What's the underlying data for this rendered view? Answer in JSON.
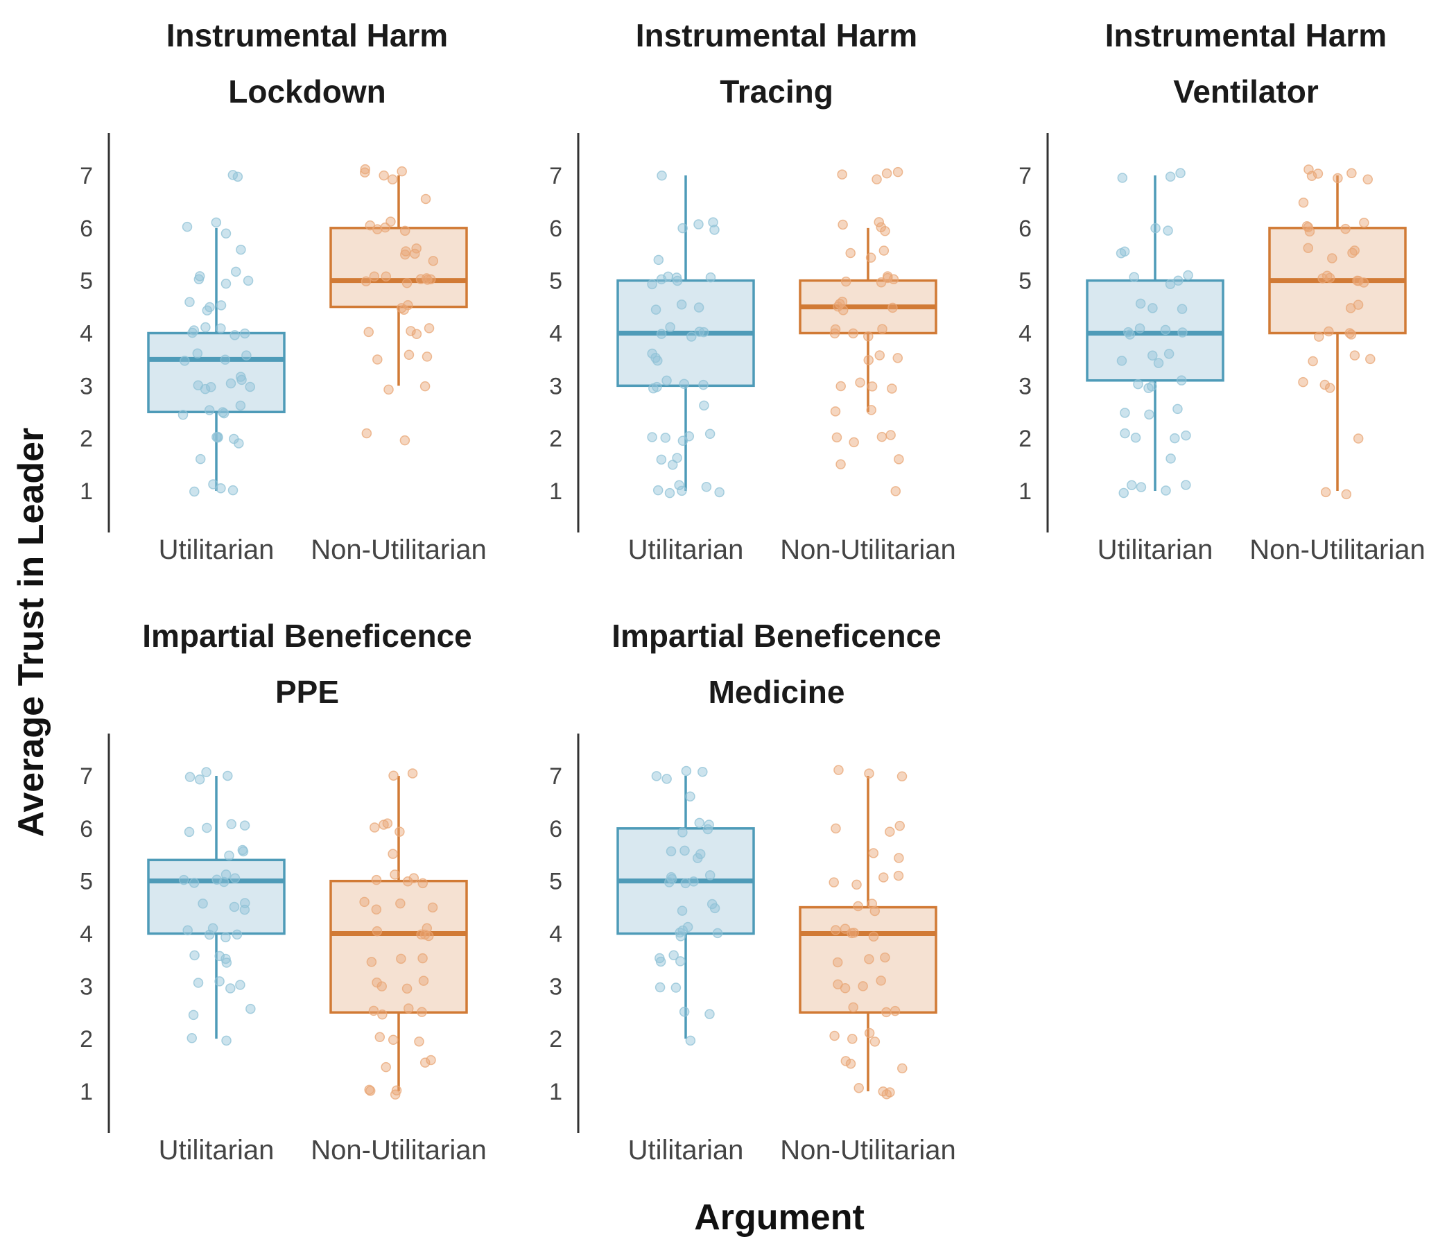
{
  "figure": {
    "ylabel": "Average Trust in Leader",
    "xlabel": "Argument"
  },
  "colors": {
    "utilitarian_line": "#4e9bb8",
    "utilitarian_fill": "#d9e8f0",
    "utilitarian_point": "#8fc1d6",
    "non_utilitarian_line": "#d17a35",
    "non_utilitarian_fill": "#f5e1d2",
    "non_utilitarian_point": "#e8a574",
    "axis": "#333333"
  },
  "chart_data": [
    {
      "type": "box",
      "title": [
        "Instrumental Harm",
        "Lockdown"
      ],
      "categories": [
        "Utilitarian",
        "Non-Utilitarian"
      ],
      "ylim": [
        0.2,
        7.8
      ],
      "yticks": [
        1,
        2,
        3,
        4,
        5,
        6,
        7
      ],
      "grid": false,
      "boxes": [
        {
          "category": "Utilitarian",
          "whisker_low": 1.0,
          "q1": 2.5,
          "median": 3.5,
          "q3": 4.0,
          "whisker_high": 6.0,
          "points": [
            1.0,
            1.0,
            1.05,
            1.1,
            1.6,
            1.9,
            2.0,
            2.0,
            2.0,
            2.05,
            2.45,
            2.5,
            2.5,
            2.55,
            2.6,
            2.95,
            3.0,
            3.0,
            3.0,
            3.05,
            3.1,
            3.15,
            3.5,
            3.5,
            3.55,
            3.6,
            3.95,
            4.0,
            4.0,
            4.05,
            4.1,
            4.1,
            4.45,
            4.5,
            4.55,
            4.6,
            4.95,
            5.0,
            5.05,
            5.1,
            5.15,
            5.6,
            5.9,
            6.0,
            6.1,
            6.95,
            7.0
          ]
        },
        {
          "category": "Non-Utilitarian",
          "whisker_low": 3.0,
          "q1": 4.5,
          "median": 5.0,
          "q3": 6.0,
          "whisker_high": 7.0,
          "points": [
            1.95,
            2.1,
            2.95,
            3.0,
            3.5,
            3.55,
            3.6,
            4.0,
            4.0,
            4.05,
            4.1,
            4.45,
            4.5,
            4.55,
            4.95,
            5.0,
            5.0,
            5.0,
            5.05,
            5.05,
            5.1,
            5.1,
            5.4,
            5.5,
            5.5,
            5.55,
            5.6,
            5.95,
            6.0,
            6.0,
            6.05,
            6.1,
            6.55,
            6.95,
            7.0,
            7.05,
            7.1,
            7.1
          ]
        }
      ]
    },
    {
      "type": "box",
      "title": [
        "Instrumental Harm",
        "Tracing"
      ],
      "categories": [
        "Utilitarian",
        "Non-Utilitarian"
      ],
      "ylim": [
        0.2,
        7.8
      ],
      "yticks": [
        1,
        2,
        3,
        4,
        5,
        6,
        7
      ],
      "grid": false,
      "boxes": [
        {
          "category": "Utilitarian",
          "whisker_low": 1.0,
          "q1": 3.0,
          "median": 4.0,
          "q3": 5.0,
          "whisker_high": 7.0,
          "points": [
            0.95,
            0.95,
            1.0,
            1.0,
            1.05,
            1.1,
            1.5,
            1.6,
            1.6,
            1.95,
            2.0,
            2.0,
            2.05,
            2.1,
            2.6,
            2.95,
            3.0,
            3.0,
            3.05,
            3.1,
            3.5,
            3.55,
            3.6,
            3.95,
            4.0,
            4.0,
            4.05,
            4.1,
            4.45,
            4.5,
            4.55,
            4.95,
            5.0,
            5.0,
            5.05,
            5.05,
            5.1,
            5.4,
            5.95,
            6.0,
            6.05,
            6.1,
            7.0
          ]
        },
        {
          "category": "Non-Utilitarian",
          "whisker_low": 2.5,
          "q1": 4.0,
          "median": 4.5,
          "q3": 5.0,
          "whisker_high": 6.0,
          "points": [
            1.0,
            1.5,
            1.6,
            1.95,
            2.0,
            2.0,
            2.05,
            2.5,
            2.55,
            2.95,
            3.0,
            3.0,
            3.05,
            3.5,
            3.55,
            3.6,
            3.95,
            4.0,
            4.0,
            4.05,
            4.1,
            4.45,
            4.5,
            4.5,
            4.55,
            4.6,
            4.95,
            5.0,
            5.0,
            5.05,
            5.1,
            5.45,
            5.5,
            5.55,
            5.95,
            6.0,
            6.05,
            6.1,
            6.95,
            7.0,
            7.05,
            7.05
          ]
        }
      ]
    },
    {
      "type": "box",
      "title": [
        "Instrumental Harm",
        "Ventilator"
      ],
      "categories": [
        "Utilitarian",
        "Non-Utilitarian"
      ],
      "ylim": [
        0.2,
        7.8
      ],
      "yticks": [
        1,
        2,
        3,
        4,
        5,
        6,
        7
      ],
      "grid": false,
      "boxes": [
        {
          "category": "Utilitarian",
          "whisker_low": 1.0,
          "q1": 3.1,
          "median": 4.0,
          "q3": 5.0,
          "whisker_high": 7.0,
          "points": [
            0.95,
            1.0,
            1.05,
            1.1,
            1.1,
            1.6,
            2.0,
            2.0,
            2.05,
            2.1,
            2.45,
            2.5,
            2.55,
            2.95,
            3.0,
            3.05,
            3.1,
            3.45,
            3.5,
            3.55,
            3.6,
            3.95,
            4.0,
            4.0,
            4.05,
            4.1,
            4.45,
            4.5,
            4.55,
            4.95,
            5.0,
            5.05,
            5.1,
            5.5,
            5.55,
            5.95,
            6.0,
            6.95,
            7.0,
            7.05
          ]
        },
        {
          "category": "Non-Utilitarian",
          "whisker_low": 1.0,
          "q1": 4.0,
          "median": 5.0,
          "q3": 6.0,
          "whisker_high": 7.0,
          "points": [
            0.95,
            1.0,
            2.0,
            2.95,
            3.0,
            3.05,
            3.45,
            3.5,
            3.55,
            3.95,
            4.0,
            4.0,
            4.05,
            4.5,
            4.55,
            4.95,
            5.0,
            5.0,
            5.05,
            5.05,
            5.1,
            5.45,
            5.5,
            5.55,
            5.6,
            5.95,
            6.0,
            6.0,
            6.05,
            6.1,
            6.5,
            6.9,
            6.95,
            7.0,
            7.05,
            7.05,
            7.1
          ]
        }
      ]
    },
    {
      "type": "box",
      "title": [
        "Impartial Beneficence",
        "PPE"
      ],
      "categories": [
        "Utilitarian",
        "Non-Utilitarian"
      ],
      "ylim": [
        0.2,
        7.8
      ],
      "yticks": [
        1,
        2,
        3,
        4,
        5,
        6,
        7
      ],
      "grid": false,
      "boxes": [
        {
          "category": "Utilitarian",
          "whisker_low": 2.0,
          "q1": 4.0,
          "median": 5.0,
          "q3": 5.4,
          "whisker_high": 7.0,
          "points": [
            1.95,
            2.0,
            2.45,
            2.55,
            2.95,
            3.0,
            3.05,
            3.1,
            3.45,
            3.5,
            3.55,
            3.6,
            3.95,
            4.0,
            4.0,
            4.05,
            4.1,
            4.45,
            4.5,
            4.55,
            4.6,
            4.95,
            5.0,
            5.0,
            5.05,
            5.05,
            5.1,
            5.5,
            5.55,
            5.6,
            5.95,
            6.0,
            6.05,
            6.1,
            6.95,
            7.0,
            7.0,
            7.05
          ]
        },
        {
          "category": "Non-Utilitarian",
          "whisker_low": 1.0,
          "q1": 2.5,
          "median": 4.0,
          "q3": 5.0,
          "whisker_high": 7.0,
          "points": [
            0.95,
            1.0,
            1.0,
            1.05,
            1.45,
            1.55,
            1.6,
            1.95,
            2.0,
            2.05,
            2.45,
            2.5,
            2.55,
            2.6,
            2.95,
            3.0,
            3.05,
            3.1,
            3.45,
            3.5,
            3.55,
            3.95,
            4.0,
            4.0,
            4.05,
            4.1,
            4.45,
            4.5,
            4.55,
            4.6,
            4.95,
            5.0,
            5.0,
            5.05,
            5.1,
            5.5,
            5.95,
            6.0,
            6.05,
            6.1,
            7.0,
            7.05
          ]
        }
      ]
    },
    {
      "type": "box",
      "title": [
        "Impartial Beneficence",
        "Medicine"
      ],
      "categories": [
        "Utilitarian",
        "Non-Utilitarian"
      ],
      "ylim": [
        0.2,
        7.8
      ],
      "yticks": [
        1,
        2,
        3,
        4,
        5,
        6,
        7
      ],
      "grid": false,
      "boxes": [
        {
          "category": "Utilitarian",
          "whisker_low": 2.0,
          "q1": 4.0,
          "median": 5.0,
          "q3": 6.0,
          "whisker_high": 7.0,
          "points": [
            1.95,
            2.45,
            2.5,
            2.95,
            3.0,
            3.45,
            3.5,
            3.55,
            3.6,
            3.95,
            4.0,
            4.0,
            4.05,
            4.1,
            4.45,
            4.5,
            4.55,
            4.95,
            5.0,
            5.0,
            5.05,
            5.05,
            5.1,
            5.45,
            5.5,
            5.55,
            5.6,
            5.95,
            6.0,
            6.05,
            6.1,
            6.6,
            6.95,
            7.0,
            7.05,
            7.1
          ]
        },
        {
          "category": "Non-Utilitarian",
          "whisker_low": 1.0,
          "q1": 2.5,
          "median": 4.0,
          "q3": 4.5,
          "whisker_high": 7.0,
          "points": [
            0.95,
            1.0,
            1.0,
            1.05,
            1.45,
            1.5,
            1.55,
            1.95,
            2.0,
            2.05,
            2.1,
            2.5,
            2.55,
            2.6,
            2.95,
            3.0,
            3.05,
            3.1,
            3.45,
            3.5,
            3.55,
            3.95,
            4.0,
            4.0,
            4.05,
            4.1,
            4.45,
            4.5,
            4.55,
            4.95,
            5.0,
            5.05,
            5.1,
            5.45,
            5.55,
            5.95,
            6.0,
            6.05,
            7.0,
            7.05,
            7.1
          ]
        }
      ]
    }
  ]
}
